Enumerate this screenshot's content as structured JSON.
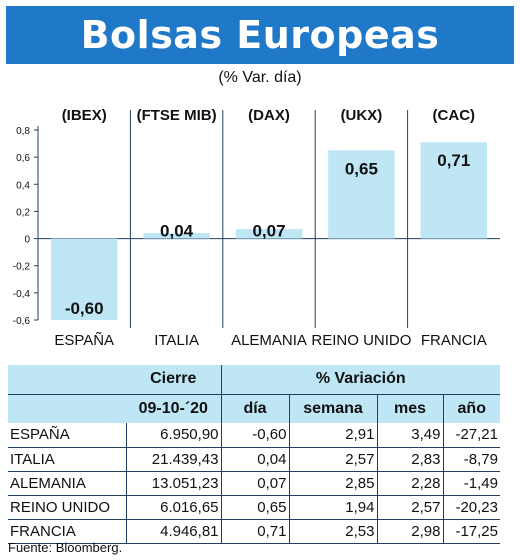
{
  "header": {
    "title": "Bolsas Europeas",
    "subtitle": "(% Var. día)"
  },
  "chart_data": {
    "type": "bar",
    "indices": [
      "(IBEX)",
      "(FTSE MIB)",
      "(DAX)",
      "(UKX)",
      "(CAC)"
    ],
    "categories": [
      "ESPAÑA",
      "ITALIA",
      "ALEMANIA",
      "REINO UNIDO",
      "FRANCIA"
    ],
    "values": [
      -0.6,
      0.04,
      0.07,
      0.65,
      0.71
    ],
    "value_labels": [
      "-0,60",
      "0,04",
      "0,07",
      "0,65",
      "0,71"
    ],
    "ylim": [
      -0.6,
      0.8
    ],
    "yticks": [
      -0.6,
      -0.4,
      -0.2,
      0,
      0.2,
      0.4,
      0.6,
      0.8
    ],
    "ytick_labels": [
      "-0,6",
      "-0,4",
      "-0,2",
      "0",
      "0,2",
      "0,4",
      "0,6",
      "0,8"
    ],
    "bar_color": "#bfe6f5",
    "grid": "vertical separators"
  },
  "table": {
    "header_top": {
      "cierre": "Cierre",
      "variacion": "% Variación"
    },
    "header_sub": {
      "date": "09-10-´20",
      "dia": "día",
      "semana": "semana",
      "mes": "mes",
      "ano": "año"
    },
    "rows": [
      {
        "country": "ESPAÑA",
        "cierre": "6.950,90",
        "dia": "-0,60",
        "semana": "2,91",
        "mes": "3,49",
        "ano": "-27,21"
      },
      {
        "country": "ITALIA",
        "cierre": "21.439,43",
        "dia": "0,04",
        "semana": "2,57",
        "mes": "2,83",
        "ano": "-8,79"
      },
      {
        "country": "ALEMANIA",
        "cierre": "13.051,23",
        "dia": "0,07",
        "semana": "2,85",
        "mes": "2,28",
        "ano": "-1,49"
      },
      {
        "country": "REINO UNIDO",
        "cierre": "6.016,65",
        "dia": "0,65",
        "semana": "1,94",
        "mes": "2,57",
        "ano": "-20,23"
      },
      {
        "country": "FRANCIA",
        "cierre": "4.946,81",
        "dia": "0,71",
        "semana": "2,53",
        "mes": "2,98",
        "ano": "-17,25"
      }
    ]
  },
  "colors": {
    "header_bg": "#1f78c8",
    "table_header_bg": "#bfe6f5"
  },
  "source": "Fuente: Bloomberg."
}
